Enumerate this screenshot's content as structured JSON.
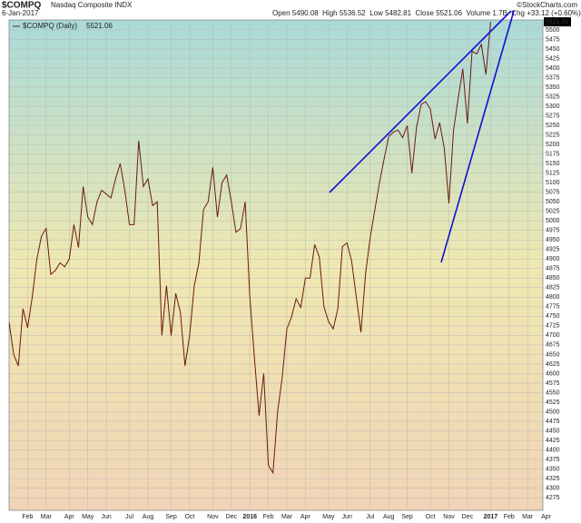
{
  "header": {
    "symbol": "$COMPQ",
    "name": "Nasdaq Composite INDX",
    "date": "6-Jan-2017",
    "quote": "Open 5490.08  High 5536.52  Low 5482.81  Close 5521.06  Volume 1.7B  Chg +33.12 (+0.60%)",
    "watermark": "©StockCharts.com"
  },
  "chart_data": {
    "type": "line",
    "grid": true,
    "categories": [
      null,
      null,
      null,
      null,
      "Feb",
      null,
      null,
      null,
      "Mar",
      null,
      null,
      null,
      null,
      "Apr",
      null,
      null,
      null,
      "May",
      null,
      null,
      null,
      "Jun",
      null,
      null,
      null,
      null,
      "Jul",
      null,
      null,
      null,
      "Aug",
      null,
      null,
      null,
      null,
      "Sep",
      null,
      null,
      null,
      "Oct",
      null,
      null,
      null,
      null,
      "Nov",
      null,
      null,
      null,
      "Dec",
      null,
      null,
      null,
      "2016",
      null,
      null,
      null,
      "Feb",
      null,
      null,
      null,
      "Mar",
      null,
      null,
      null,
      "Apr",
      null,
      null,
      null,
      null,
      "May",
      null,
      null,
      null,
      "Jun",
      null,
      null,
      null,
      null,
      "Jul",
      null,
      null,
      null,
      "Aug",
      null,
      null,
      null,
      "Sep",
      null,
      null,
      null,
      null,
      "Oct",
      null,
      null,
      null,
      "Nov",
      null,
      null,
      null,
      "Dec",
      null,
      null,
      null,
      null,
      "2017",
      null,
      null,
      null,
      "Feb",
      null,
      null,
      null,
      "Mar",
      null,
      null,
      null,
      "Apr"
    ],
    "series": [
      {
        "name": "$COMPQ (Daily)",
        "color": "#6b1a12",
        "values": [
          4735,
          4650,
          4620,
          4770,
          4720,
          4800,
          4900,
          4960,
          4980,
          4860,
          4870,
          4890,
          4880,
          4900,
          4990,
          4930,
          5090,
          5010,
          4990,
          5050,
          5080,
          5070,
          5060,
          5110,
          5150,
          5080,
          4990,
          4990,
          5210,
          5090,
          5110,
          5040,
          5050,
          4700,
          4830,
          4700,
          4810,
          4760,
          4620,
          4700,
          4830,
          4890,
          5030,
          5050,
          5140,
          5010,
          5100,
          5120,
          5050,
          4970,
          4980,
          5050,
          4800,
          4640,
          4490,
          4600,
          4360,
          4340,
          4500,
          4590,
          4717,
          4748,
          4796,
          4773,
          4850,
          4850,
          4938,
          4906,
          4775,
          4736,
          4717,
          4769,
          4933,
          4942,
          4894,
          4800,
          4708,
          4862,
          4956,
          5029,
          5100,
          5162,
          5221,
          5232,
          5238,
          5218,
          5249,
          5125,
          5244,
          5305,
          5312,
          5292,
          5214,
          5257,
          5190,
          5046,
          5237,
          5321,
          5398,
          5255,
          5444,
          5437,
          5462,
          5383,
          5521.06,
          null,
          null,
          null,
          null,
          null,
          null,
          null,
          null,
          null,
          null,
          null,
          null
        ]
      }
    ],
    "ylim": [
      4242,
      5526
    ],
    "yticks": [
      4275,
      4300,
      4325,
      4350,
      4375,
      4400,
      4425,
      4450,
      4475,
      4500,
      4525,
      4550,
      4575,
      4600,
      4625,
      4650,
      4675,
      4700,
      4725,
      4750,
      4775,
      4800,
      4825,
      4850,
      4875,
      4900,
      4925,
      4950,
      4975,
      5000,
      5025,
      5050,
      5075,
      5100,
      5125,
      5150,
      5175,
      5200,
      5225,
      5250,
      5275,
      5300,
      5325,
      5350,
      5375,
      5400,
      5425,
      5450,
      5475,
      5500
    ]
  }
}
